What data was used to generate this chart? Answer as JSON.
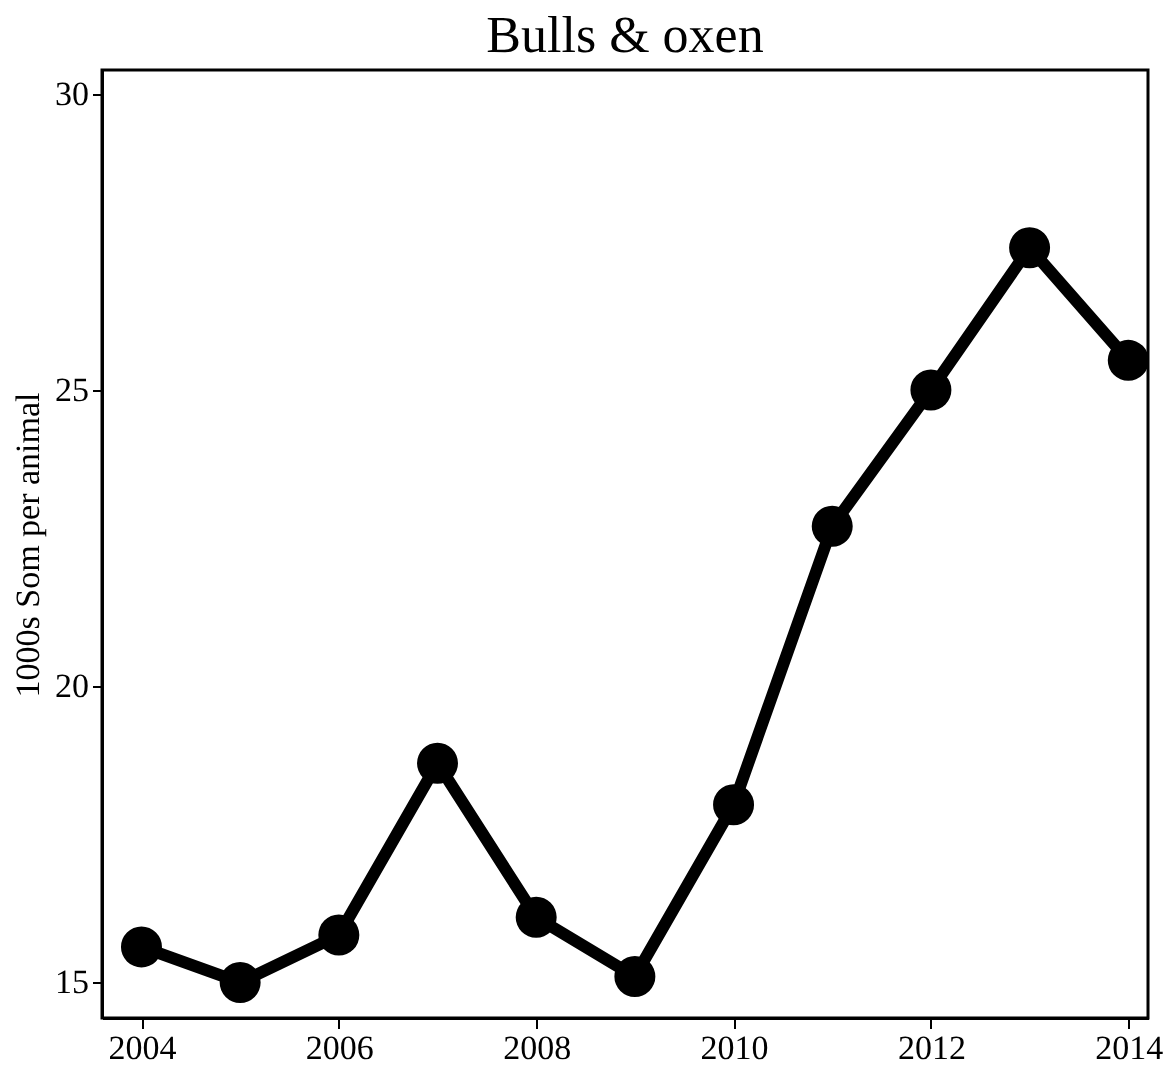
{
  "chart_data": {
    "type": "line",
    "title": "Bulls & oxen",
    "ylabel": "1000s Som per animal",
    "x": [
      2004,
      2005,
      2006,
      2007,
      2008,
      2009,
      2010,
      2011,
      2012,
      2013,
      2014
    ],
    "series": [
      {
        "color": "#000000",
        "values": [
          15.6,
          15.0,
          15.8,
          18.7,
          16.1,
          15.1,
          18.0,
          22.7,
          25.0,
          27.4,
          25.5
        ]
      }
    ],
    "xlim": [
      2003.6,
      2014.2
    ],
    "xticks": [
      2004,
      2006,
      2008,
      2010,
      2012,
      2014
    ],
    "ylim": [
      14.4,
      30.4
    ],
    "yticks": [
      15,
      20,
      25,
      30
    ],
    "grid": false,
    "marker": "circle",
    "line_style": "solid"
  }
}
